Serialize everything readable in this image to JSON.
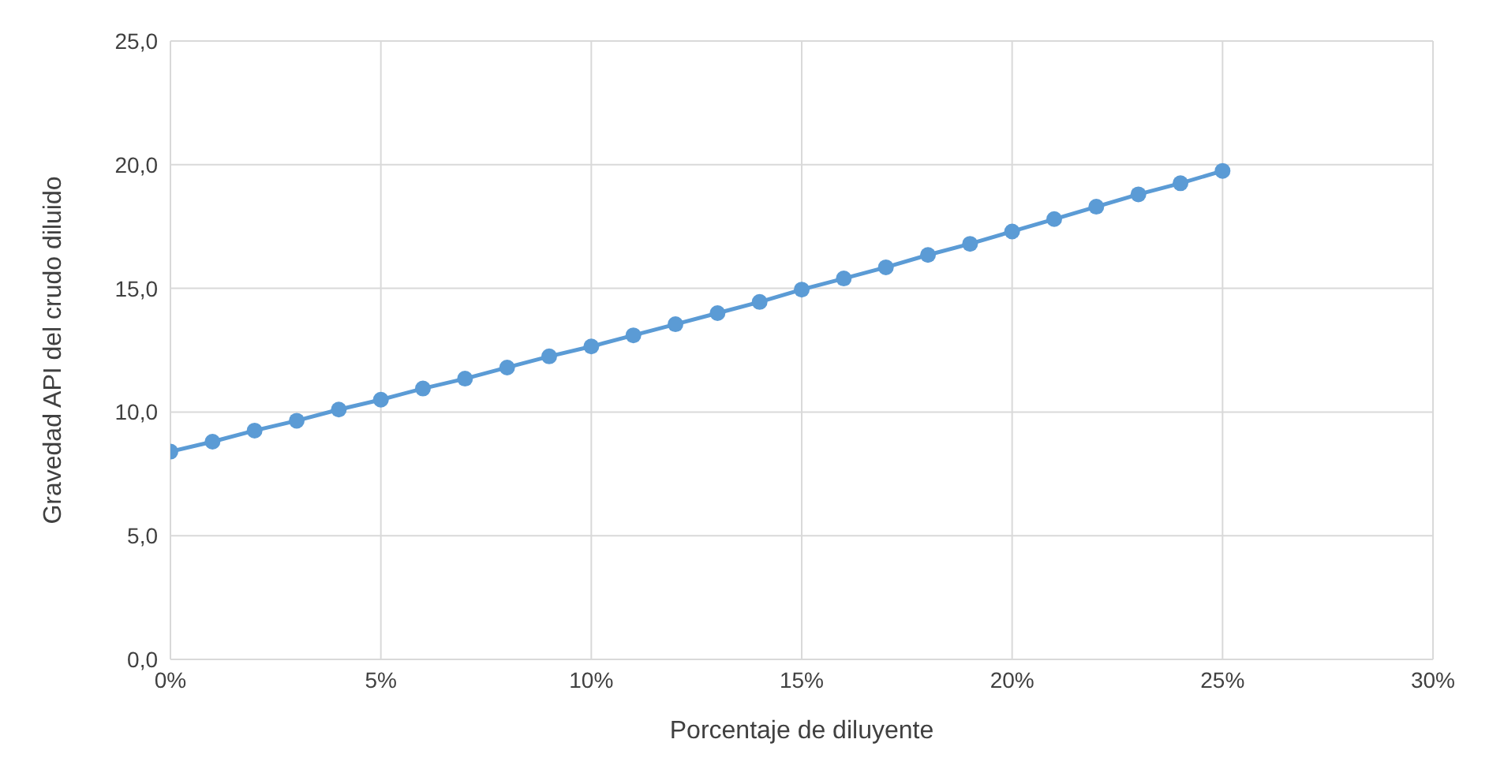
{
  "chart_data": {
    "type": "line",
    "xlabel": "Porcentaje de diluyente",
    "ylabel": "Gravedad  API del crudo diluido",
    "x": [
      0,
      1,
      2,
      3,
      4,
      5,
      6,
      7,
      8,
      9,
      10,
      11,
      12,
      13,
      14,
      15,
      16,
      17,
      18,
      19,
      20,
      21,
      22,
      23,
      24,
      25
    ],
    "series": [
      {
        "color": "#5b9bd5",
        "values": [
          8.4,
          8.8,
          9.25,
          9.65,
          10.1,
          10.5,
          10.95,
          11.35,
          11.8,
          12.25,
          12.65,
          13.1,
          13.55,
          14.0,
          14.45,
          14.95,
          15.4,
          15.85,
          16.35,
          16.8,
          17.3,
          17.8,
          18.3,
          18.8,
          19.25,
          19.75
        ]
      }
    ],
    "xlim": [
      0,
      30
    ],
    "xticks": [
      {
        "value": 0,
        "label": "0%"
      },
      {
        "value": 5,
        "label": "5%"
      },
      {
        "value": 10,
        "label": "10%"
      },
      {
        "value": 15,
        "label": "15%"
      },
      {
        "value": 20,
        "label": "20%"
      },
      {
        "value": 25,
        "label": "25%"
      },
      {
        "value": 30,
        "label": "30%"
      }
    ],
    "ylim": [
      0,
      25
    ],
    "yticks": [
      {
        "value": 0,
        "label": "0,0"
      },
      {
        "value": 5,
        "label": "5,0"
      },
      {
        "value": 10,
        "label": "10,0"
      },
      {
        "value": 15,
        "label": "15,0"
      },
      {
        "value": 20,
        "label": "20,0"
      },
      {
        "value": 25,
        "label": "25,0"
      }
    ],
    "grid": true,
    "marker": "circle",
    "line_style": "solid"
  }
}
